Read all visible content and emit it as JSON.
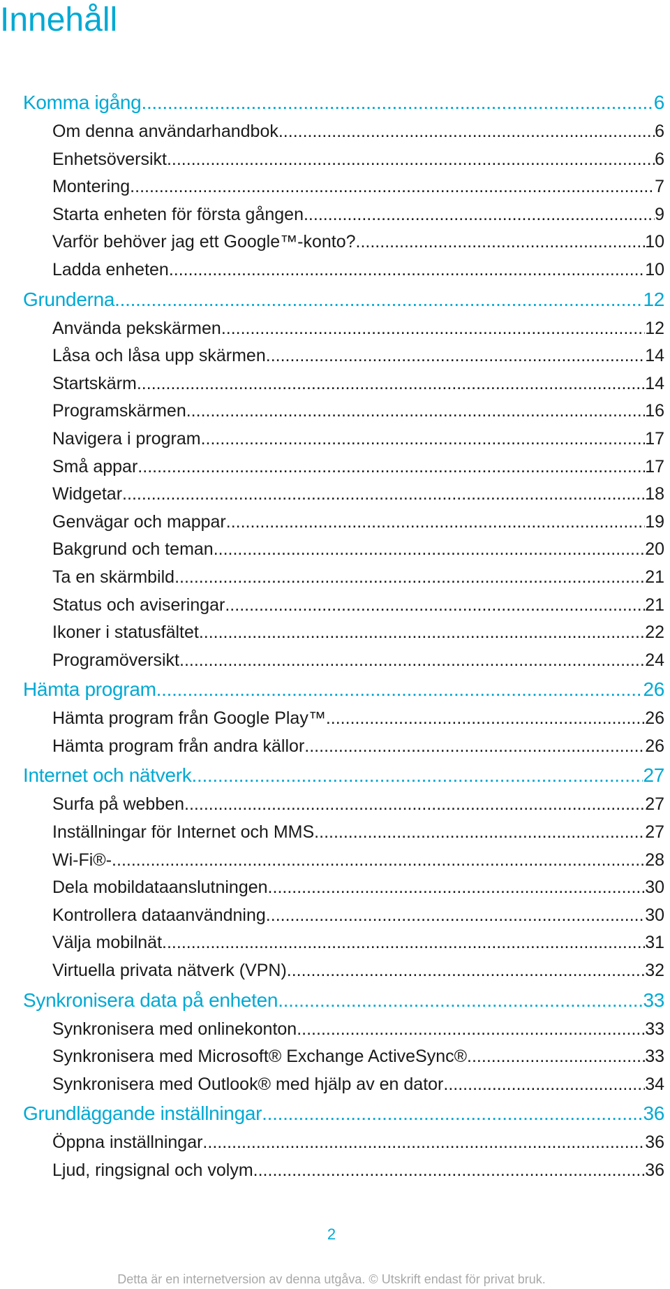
{
  "title": "Innehåll",
  "sections": [
    {
      "label": "Komma igång",
      "page": "6",
      "items": [
        {
          "label": "Om denna användarhandbok",
          "page": "6"
        },
        {
          "label": "Enhetsöversikt",
          "page": "6"
        },
        {
          "label": "Montering",
          "page": "7"
        },
        {
          "label": "Starta enheten för första gången",
          "page": "9"
        },
        {
          "label": "Varför behöver jag ett Google™-konto?",
          "page": "10"
        },
        {
          "label": "Ladda enheten",
          "page": "10"
        }
      ]
    },
    {
      "label": "Grunderna",
      "page": "12",
      "items": [
        {
          "label": "Använda pekskärmen",
          "page": "12"
        },
        {
          "label": "Låsa och låsa upp skärmen",
          "page": "14"
        },
        {
          "label": "Startskärm",
          "page": "14"
        },
        {
          "label": "Programskärmen",
          "page": "16"
        },
        {
          "label": "Navigera i program",
          "page": "17"
        },
        {
          "label": "Små appar",
          "page": "17"
        },
        {
          "label": "Widgetar",
          "page": "18"
        },
        {
          "label": "Genvägar och mappar",
          "page": "19"
        },
        {
          "label": "Bakgrund och teman",
          "page": "20"
        },
        {
          "label": "Ta en skärmbild",
          "page": "21"
        },
        {
          "label": "Status och aviseringar",
          "page": "21"
        },
        {
          "label": "Ikoner i statusfältet",
          "page": "22"
        },
        {
          "label": "Programöversikt",
          "page": "24"
        }
      ]
    },
    {
      "label": "Hämta program",
      "page": "26",
      "items": [
        {
          "label": "Hämta program från Google Play™",
          "page": "26"
        },
        {
          "label": "Hämta program från andra källor",
          "page": "26"
        }
      ]
    },
    {
      "label": "Internet och nätverk",
      "page": "27",
      "items": [
        {
          "label": "Surfa på webben",
          "page": "27"
        },
        {
          "label": "Inställningar för Internet och MMS ",
          "page": "27"
        },
        {
          "label": "Wi-Fi®-",
          "page": "28"
        },
        {
          "label": "Dela mobildataanslutningen",
          "page": "30"
        },
        {
          "label": "Kontrollera dataanvändning",
          "page": "30"
        },
        {
          "label": "Välja mobilnät",
          "page": "31"
        },
        {
          "label": "Virtuella privata nätverk (VPN)",
          "page": "32"
        }
      ]
    },
    {
      "label": "Synkronisera data på enheten",
      "page": "33",
      "items": [
        {
          "label": "Synkronisera med onlinekonton",
          "page": "33"
        },
        {
          "label": "Synkronisera med Microsoft® Exchange ActiveSync®",
          "page": "33"
        },
        {
          "label": "Synkronisera med Outlook® med hjälp av en dator",
          "page": "34"
        }
      ]
    },
    {
      "label": "Grundläggande inställningar",
      "page": "36",
      "items": [
        {
          "label": "Öppna inställningar",
          "page": "36"
        },
        {
          "label": "Ljud, ringsignal och volym",
          "page": "36"
        }
      ]
    }
  ],
  "page_number": "2",
  "footer": "Detta är en internetversion av denna utgåva. © Utskrift endast för privat bruk."
}
